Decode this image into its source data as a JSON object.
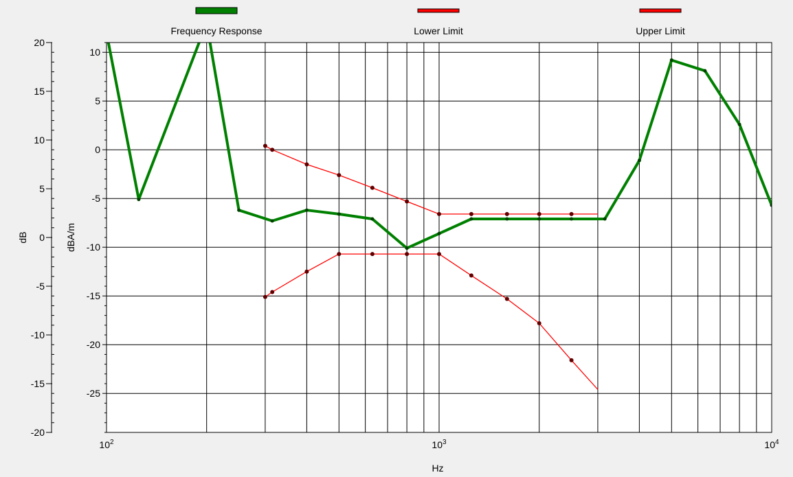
{
  "chart_data": {
    "type": "line",
    "xscale": "log",
    "xlim": [
      100,
      10000
    ],
    "x_ticks": [
      {
        "value": 100,
        "base": "10",
        "exp": "2"
      },
      {
        "value": 1000,
        "base": "10",
        "exp": "3"
      },
      {
        "value": 10000,
        "base": "10",
        "exp": "4"
      }
    ],
    "xlabel": "Hz",
    "ylabel_outer": "dB",
    "ylabel_inner": "dBA/m",
    "ylim_outer": [
      -20,
      20
    ],
    "ylim_inner": [
      -29,
      11
    ],
    "y_ticks_outer": [
      20,
      15,
      10,
      5,
      0,
      -5,
      -10,
      -15,
      -20
    ],
    "y_ticks_inner": [
      10,
      5,
      0,
      -5,
      -10,
      -15,
      -20,
      -25
    ],
    "y_ticks_inner_labels": [
      "10",
      "5",
      "0",
      "-5",
      "-10",
      "-15",
      "-20",
      "-25"
    ],
    "y_ticks_outer_labels": [
      "20",
      "15",
      "10",
      "5",
      "0",
      "-5",
      "-10",
      "-15",
      "-20"
    ],
    "grid": true,
    "legend_position": "top",
    "legend": [
      {
        "label": "Frequency Response",
        "color": "#008000"
      },
      {
        "label": "Lower Limit",
        "color": "#ff0000"
      },
      {
        "label": "Upper Limit",
        "color": "#ff0000"
      }
    ],
    "series": [
      {
        "name": "Frequency Response",
        "color": "#008000",
        "x": [
          100,
          125,
          200,
          250,
          315,
          400,
          500,
          630,
          800,
          1000,
          1250,
          1600,
          2000,
          2500,
          3150,
          4000,
          5000,
          6300,
          8000,
          10000
        ],
        "y": [
          12.0,
          -5.1,
          13.0,
          -6.2,
          -7.3,
          -6.2,
          -6.6,
          -7.1,
          -10.1,
          -8.6,
          -7.1,
          -7.1,
          -7.1,
          -7.1,
          -7.1,
          -1.1,
          9.2,
          8.1,
          2.6,
          -5.7
        ]
      },
      {
        "name": "Lower Limit",
        "color": "#ff0000",
        "x": [
          300,
          315,
          400,
          500,
          630,
          800,
          1000,
          1250,
          1600,
          2000,
          2500,
          3000
        ],
        "y": [
          0.4,
          0.0,
          -1.5,
          -2.6,
          -3.9,
          -5.3,
          -6.6,
          -6.6,
          -6.6,
          -6.6,
          -6.6,
          -6.6
        ]
      },
      {
        "name": "Upper Limit",
        "color": "#ff0000",
        "x": [
          300,
          315,
          400,
          500,
          630,
          800,
          1000,
          1250,
          1600,
          2000,
          2500,
          3000
        ],
        "y": [
          -15.1,
          -14.6,
          -12.5,
          -10.7,
          -10.7,
          -10.7,
          -10.7,
          -12.9,
          -15.3,
          -17.8,
          -21.6,
          -24.6
        ]
      }
    ]
  }
}
